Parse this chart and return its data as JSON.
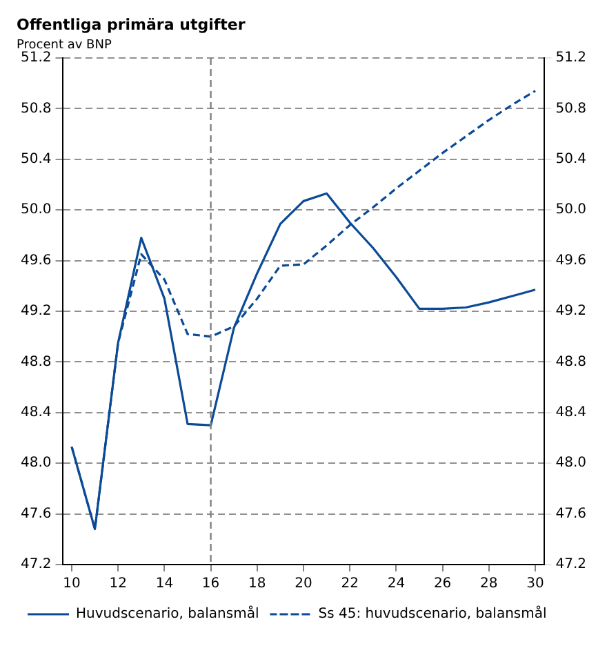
{
  "chart_data": {
    "type": "line",
    "title": "Offentliga primära utgifter",
    "subtitle": "Procent av BNP",
    "x": [
      10,
      11,
      12,
      13,
      14,
      15,
      16,
      17,
      18,
      19,
      20,
      21,
      22,
      23,
      24,
      25,
      26,
      27,
      28,
      29,
      30
    ],
    "series": [
      {
        "name": "Huvudscenario, balansmål",
        "color": "#0b4a96",
        "line_style": "solid",
        "values": [
          48.13,
          47.48,
          48.95,
          49.78,
          49.3,
          48.31,
          48.3,
          49.07,
          49.5,
          49.89,
          50.07,
          50.13,
          49.9,
          49.7,
          49.47,
          49.22,
          49.22,
          49.23,
          49.27,
          49.32,
          49.37
        ]
      },
      {
        "name": "Ss 45: huvudscenario, balansmål",
        "color": "#0b4a96",
        "line_style": "dashed",
        "values": [
          48.13,
          47.48,
          48.95,
          49.65,
          49.45,
          49.02,
          49.0,
          49.08,
          49.3,
          49.56,
          49.57,
          49.72,
          49.88,
          50.02,
          50.17,
          50.31,
          50.45,
          50.58,
          50.71,
          50.83,
          50.94
        ]
      }
    ],
    "xlim": [
      9.6,
      30.4
    ],
    "xticks": [
      10,
      12,
      14,
      16,
      18,
      20,
      22,
      24,
      26,
      28,
      30
    ],
    "ylim": [
      47.2,
      51.2
    ],
    "yticks": [
      {
        "value": 47.2,
        "label": "47.2"
      },
      {
        "value": 47.6,
        "label": "47.6"
      },
      {
        "value": 48,
        "label": "48.0"
      },
      {
        "value": 48.4,
        "label": "48.4"
      },
      {
        "value": 48.8,
        "label": "48.8"
      },
      {
        "value": 49.2,
        "label": "49.2"
      },
      {
        "value": 49.6,
        "label": "49.6"
      },
      {
        "value": 50,
        "label": "50.0"
      },
      {
        "value": 50.4,
        "label": "50.4"
      },
      {
        "value": 50.8,
        "label": "50.8"
      },
      {
        "value": 51.2,
        "label": "51.2"
      }
    ],
    "y2lim": [
      47.2,
      51.2
    ],
    "y2ticks": [
      {
        "value": 47.2,
        "label": "47.2"
      },
      {
        "value": 47.6,
        "label": "47.6"
      },
      {
        "value": 48,
        "label": "48.0"
      },
      {
        "value": 48.4,
        "label": "48.4"
      },
      {
        "value": 48.8,
        "label": "48.8"
      },
      {
        "value": 49.2,
        "label": "49.2"
      },
      {
        "value": 49.6,
        "label": "49.6"
      },
      {
        "value": 50,
        "label": "50.0"
      },
      {
        "value": 50.4,
        "label": "50.4"
      },
      {
        "value": 50.8,
        "label": "50.8"
      },
      {
        "value": 51.2,
        "label": "51.2"
      }
    ],
    "ref_lines": [
      {
        "axis": "x",
        "value": 16,
        "color": "#808080",
        "line_style": "dashed"
      }
    ],
    "grid": "y",
    "legend": "bottom",
    "marker": "none"
  }
}
